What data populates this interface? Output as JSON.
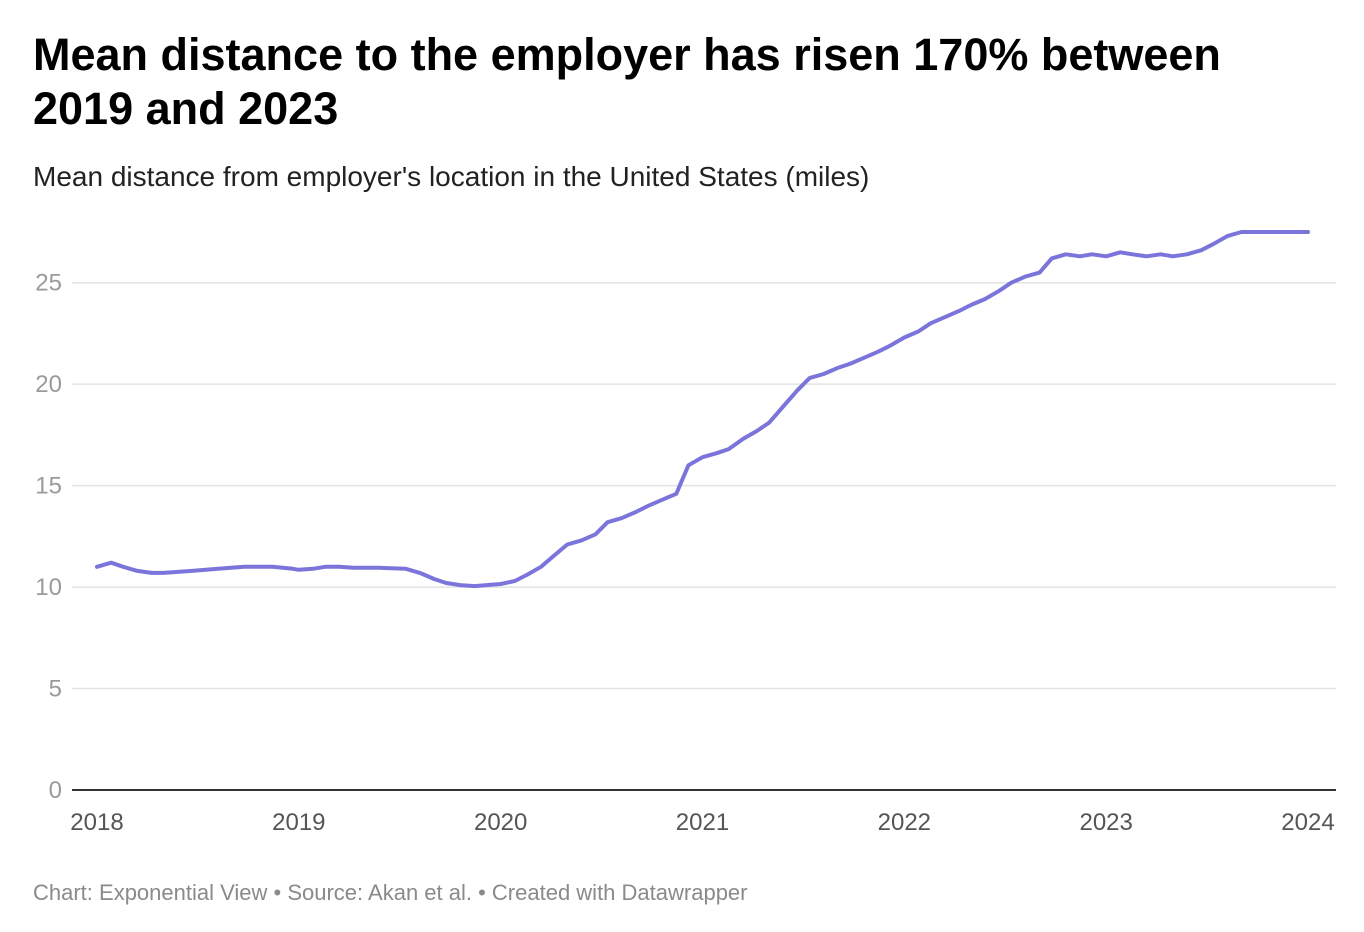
{
  "title": "Mean distance to the employer has risen 170% between 2019 and 2023",
  "subtitle": "Mean distance from employer's location in the United States (miles)",
  "footer": "Chart: Exponential View • Source: Akan et al. • Created with Datawrapper",
  "colors": {
    "line": "#7b75db",
    "grid": "#e3e3e3",
    "axis": "#333333",
    "tick_text": "#9a9a9a",
    "x_tick_text": "#555555"
  },
  "chart_data": {
    "type": "line",
    "title": "Mean distance to the employer has risen 170% between 2019 and 2023",
    "subtitle": "Mean distance from employer's location in the United States (miles)",
    "xlabel": "",
    "ylabel": "",
    "xlim": [
      2018,
      2024
    ],
    "ylim": [
      0,
      27.5
    ],
    "x_ticks": [
      2018,
      2019,
      2020,
      2021,
      2022,
      2023,
      2024
    ],
    "x_tick_labels": [
      "2018",
      "2019",
      "2020",
      "2021",
      "2022",
      "2023",
      "2024"
    ],
    "y_ticks": [
      0,
      5,
      10,
      15,
      20,
      25
    ],
    "y_tick_labels": [
      "0",
      "5",
      "10",
      "15",
      "20",
      "25"
    ],
    "grid": true,
    "series": [
      {
        "x": [
          2018.0,
          2018.07,
          2018.13,
          2018.2,
          2018.27,
          2018.33,
          2018.47,
          2018.6,
          2018.73,
          2018.87,
          2018.97,
          2019.0,
          2019.07,
          2019.13,
          2019.2,
          2019.27,
          2019.4,
          2019.53,
          2019.6,
          2019.67,
          2019.73,
          2019.8,
          2019.87,
          2019.93,
          2020.0,
          2020.07,
          2020.13,
          2020.2,
          2020.27,
          2020.33,
          2020.4,
          2020.47,
          2020.53,
          2020.6,
          2020.67,
          2020.73,
          2020.8,
          2020.87,
          2020.93,
          2021.0,
          2021.07,
          2021.13,
          2021.2,
          2021.27,
          2021.33,
          2021.4,
          2021.47,
          2021.53,
          2021.6,
          2021.67,
          2021.73,
          2021.8,
          2021.87,
          2021.93,
          2022.0,
          2022.07,
          2022.13,
          2022.2,
          2022.27,
          2022.33,
          2022.4,
          2022.47,
          2022.53,
          2022.6,
          2022.67,
          2022.73,
          2022.8,
          2022.87,
          2022.93,
          2023.0,
          2023.07,
          2023.13,
          2023.2,
          2023.27,
          2023.33,
          2023.4,
          2023.47,
          2023.53,
          2023.6,
          2023.67,
          2023.73,
          2023.8,
          2023.87,
          2023.93,
          2024.0
        ],
        "y": [
          11.0,
          11.2,
          11.0,
          10.8,
          10.7,
          10.7,
          10.8,
          10.9,
          11.0,
          11.0,
          10.9,
          10.85,
          10.9,
          11.0,
          11.0,
          10.95,
          10.95,
          10.9,
          10.7,
          10.4,
          10.2,
          10.1,
          10.05,
          10.1,
          10.15,
          10.3,
          10.6,
          11.0,
          11.6,
          12.1,
          12.3,
          12.6,
          13.2,
          13.4,
          13.7,
          14.0,
          14.3,
          14.6,
          16.0,
          16.4,
          16.6,
          16.8,
          17.3,
          17.7,
          18.1,
          18.9,
          19.7,
          20.3,
          20.5,
          20.8,
          21.0,
          21.3,
          21.6,
          21.9,
          22.3,
          22.6,
          23.0,
          23.3,
          23.6,
          23.9,
          24.2,
          24.6,
          25.0,
          25.3,
          25.5,
          26.2,
          26.4,
          26.3,
          26.4,
          26.3,
          26.5,
          26.4,
          26.3,
          26.4,
          26.3,
          26.4,
          26.6,
          26.9,
          27.3,
          27.5,
          27.5,
          27.5,
          27.5,
          27.5,
          27.5
        ]
      }
    ]
  }
}
